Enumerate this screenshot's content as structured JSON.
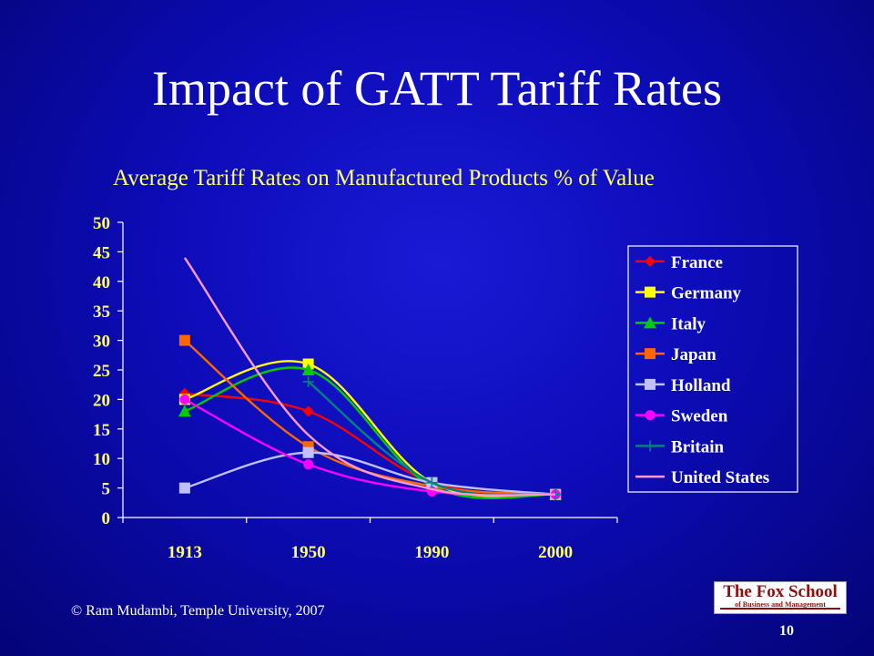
{
  "slide": {
    "title": "Impact of GATT Tariff Rates",
    "footer": "© Ram Mudambi, Temple University, 2007",
    "page_number": "10",
    "logo": {
      "line1": "The Fox School",
      "line2": "of Business and Management"
    }
  },
  "colors": {
    "background": "#0c0cb8",
    "subtitle": "#ffff66",
    "logo_text": "#8b1010"
  },
  "chart_data": {
    "type": "line",
    "title": "Average Tariff Rates on Manufactured Products % of Value",
    "categories": [
      "1913",
      "1950",
      "1990",
      "2000"
    ],
    "ylim": [
      0,
      50
    ],
    "yticks": [
      0,
      5,
      10,
      15,
      20,
      25,
      30,
      35,
      40,
      45,
      50
    ],
    "grid": false,
    "legend": "right",
    "series": [
      {
        "name": "France",
        "values": [
          21,
          18,
          5.9,
          3.9
        ],
        "color": "#ff0000",
        "marker": "diamond"
      },
      {
        "name": "Germany",
        "values": [
          20,
          26,
          5.9,
          3.9
        ],
        "color": "#ffff00",
        "marker": "square"
      },
      {
        "name": "Italy",
        "values": [
          18,
          25,
          5.3,
          3.9
        ],
        "color": "#00cc00",
        "marker": "triangle"
      },
      {
        "name": "Japan",
        "values": [
          30,
          12,
          5.3,
          3.9
        ],
        "color": "#ff6600",
        "marker": "square"
      },
      {
        "name": "Holland",
        "values": [
          5,
          11,
          5.9,
          3.9
        ],
        "color": "#c0c0ff",
        "marker": "square"
      },
      {
        "name": "Sweden",
        "values": [
          20,
          9,
          4.4,
          3.9
        ],
        "color": "#ff00ff",
        "marker": "circle"
      },
      {
        "name": "Britain",
        "values": [
          null,
          23,
          5.9,
          3.9
        ],
        "color": "#008080",
        "marker": "plus"
      },
      {
        "name": "United States",
        "values": [
          44,
          14,
          4.8,
          3.9
        ],
        "color": "#ff99cc",
        "marker": "none"
      }
    ]
  }
}
